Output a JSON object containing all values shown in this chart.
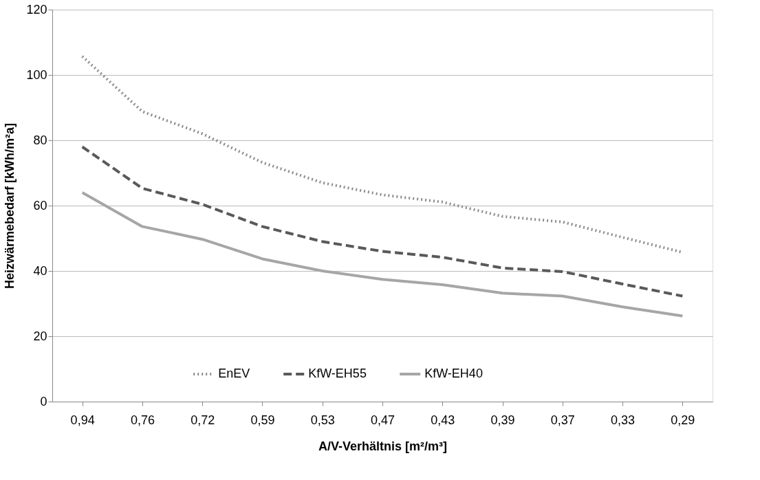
{
  "chart_data": {
    "type": "line",
    "xlabel": "A/V-Verhältnis [m²/m³]",
    "ylabel": "Heizwärmebedarf [kWh/m²a]",
    "categories": [
      "0,94",
      "0,76",
      "0,72",
      "0,59",
      "0,53",
      "0,47",
      "0,43",
      "0,39",
      "0,37",
      "0,33",
      "0,29"
    ],
    "series": [
      {
        "name": "EnEV",
        "color": "#8c8c8c",
        "line_style": "dotted",
        "values": [
          105.7,
          88.8,
          82,
          73.2,
          67,
          63.3,
          61.1,
          56.7,
          55,
          50.3,
          45.7
        ]
      },
      {
        "name": "KfW-EH55",
        "color": "#595959",
        "line_style": "dashed",
        "values": [
          78,
          65.3,
          60.4,
          53.6,
          49,
          46,
          44.2,
          40.9,
          39.8,
          36,
          32.3
        ]
      },
      {
        "name": "KfW-EH40",
        "color": "#a6a6a6",
        "line_style": "solid",
        "values": [
          64,
          53.6,
          49.7,
          43.7,
          40,
          37.4,
          35.8,
          33.2,
          32.3,
          29,
          26.2
        ]
      }
    ],
    "ylim": [
      0,
      120
    ],
    "yticks": [
      0,
      20,
      40,
      60,
      80,
      100,
      120
    ],
    "grid": "y",
    "legend": "bottom",
    "marker": "none"
  }
}
